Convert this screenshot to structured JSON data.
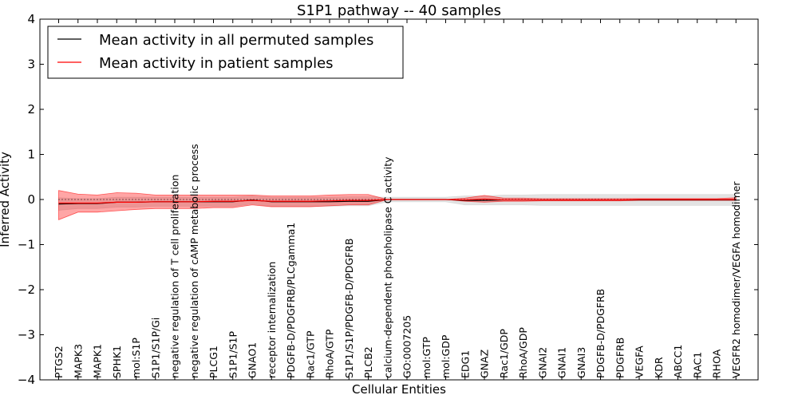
{
  "chart_data": {
    "type": "line",
    "title": "S1P1 pathway -- 40 samples",
    "xlabel": "Cellular Entities",
    "ylabel": "Inferred Activity",
    "ylim": [
      -4,
      4
    ],
    "yticks": [
      -4,
      -3,
      -2,
      -1,
      0,
      1,
      2,
      3,
      4
    ],
    "ytick_labels": [
      "−4",
      "−3",
      "−2",
      "−1",
      "0",
      "1",
      "2",
      "3",
      "4"
    ],
    "grid": false,
    "legend_position": "top-left",
    "categories": [
      "PTGS2",
      "MAPK3",
      "MAPK1",
      "SPHK1",
      "mol:S1P",
      "S1P1/S1P/Gi",
      "negative regulation of T cell proliferation",
      "negative regulation of cAMP metabolic process",
      "PLCG1",
      "S1P1/S1P",
      "GNAO1",
      "receptor internalization",
      "PDGFB-D/PDGFRB/PLCgamma1",
      "Rac1/GTP",
      "RhoA/GTP",
      "S1P1/S1P/PDGFB-D/PDGFRB",
      "PLCB2",
      "calcium-dependent phospholipase C activity",
      "GO:0007205",
      "mol:GTP",
      "mol:GDP",
      "EDG1",
      "GNAZ",
      "Rac1/GDP",
      "RhoA/GDP",
      "GNAI2",
      "GNAI1",
      "GNAI3",
      "PDGFB-D/PDGFRB",
      "PDGFRB",
      "VEGFA",
      "KDR",
      "ABCC1",
      "RAC1",
      "RHOA",
      "VEGFR2 homodimer/VEGFA homodimer"
    ],
    "series": [
      {
        "name": "Mean activity in all permuted samples",
        "color": "#000000",
        "values": [
          -0.1,
          -0.09,
          -0.09,
          -0.06,
          -0.06,
          -0.05,
          -0.05,
          -0.05,
          -0.05,
          -0.05,
          -0.01,
          -0.05,
          -0.05,
          -0.05,
          -0.05,
          -0.04,
          -0.04,
          0.0,
          0.0,
          0.0,
          0.0,
          -0.02,
          -0.02,
          -0.01,
          -0.01,
          -0.01,
          -0.01,
          -0.01,
          -0.01,
          -0.01,
          -0.01,
          -0.01,
          -0.01,
          -0.01,
          -0.01,
          -0.01
        ],
        "lower": [
          -0.24,
          -0.2,
          -0.2,
          -0.17,
          -0.17,
          -0.15,
          -0.15,
          -0.15,
          -0.15,
          -0.15,
          -0.1,
          -0.15,
          -0.15,
          -0.15,
          -0.15,
          -0.14,
          -0.14,
          -0.05,
          -0.05,
          -0.05,
          -0.05,
          -0.12,
          -0.12,
          -0.12,
          -0.12,
          -0.13,
          -0.13,
          -0.13,
          -0.13,
          -0.13,
          -0.13,
          -0.13,
          -0.13,
          -0.13,
          -0.13,
          -0.13
        ],
        "upper": [
          0.04,
          0.02,
          0.02,
          0.05,
          0.05,
          0.05,
          0.05,
          0.05,
          0.05,
          0.05,
          0.08,
          0.05,
          0.05,
          0.05,
          0.05,
          0.06,
          0.06,
          0.05,
          0.05,
          0.05,
          0.05,
          0.08,
          0.08,
          0.1,
          0.1,
          0.11,
          0.11,
          0.11,
          0.11,
          0.11,
          0.11,
          0.11,
          0.11,
          0.11,
          0.11,
          0.11
        ],
        "band_color": "#cccccc"
      },
      {
        "name": "Mean activity in patient samples",
        "color": "#ff0000",
        "values": [
          -0.08,
          -0.08,
          -0.08,
          -0.06,
          -0.06,
          -0.05,
          -0.05,
          -0.05,
          -0.04,
          -0.04,
          -0.02,
          -0.04,
          -0.04,
          -0.04,
          -0.03,
          -0.02,
          -0.02,
          0.0,
          0.0,
          0.0,
          0.0,
          -0.01,
          0.01,
          -0.01,
          -0.01,
          -0.01,
          -0.01,
          -0.01,
          -0.01,
          -0.01,
          0.0,
          0.0,
          0.0,
          0.0,
          0.0,
          0.0
        ],
        "lower": [
          -0.45,
          -0.28,
          -0.28,
          -0.25,
          -0.22,
          -0.2,
          -0.2,
          -0.2,
          -0.18,
          -0.18,
          -0.12,
          -0.16,
          -0.16,
          -0.16,
          -0.14,
          -0.12,
          -0.12,
          0.0,
          0.0,
          0.0,
          0.0,
          -0.04,
          -0.06,
          -0.04,
          -0.04,
          -0.03,
          -0.03,
          -0.03,
          -0.03,
          -0.03,
          -0.02,
          -0.02,
          -0.02,
          -0.02,
          -0.02,
          -0.02
        ],
        "upper": [
          0.2,
          0.12,
          0.1,
          0.15,
          0.14,
          0.1,
          0.1,
          0.1,
          0.1,
          0.1,
          0.1,
          0.08,
          0.08,
          0.08,
          0.1,
          0.11,
          0.11,
          0.0,
          0.0,
          0.0,
          0.0,
          0.03,
          0.09,
          0.03,
          0.03,
          0.02,
          0.02,
          0.02,
          0.02,
          0.02,
          0.02,
          0.02,
          0.02,
          0.02,
          0.02,
          0.04
        ],
        "band_color": "#ff0000"
      }
    ],
    "reference_line": {
      "y": 0,
      "style": "dotted",
      "color": "#000000"
    }
  }
}
